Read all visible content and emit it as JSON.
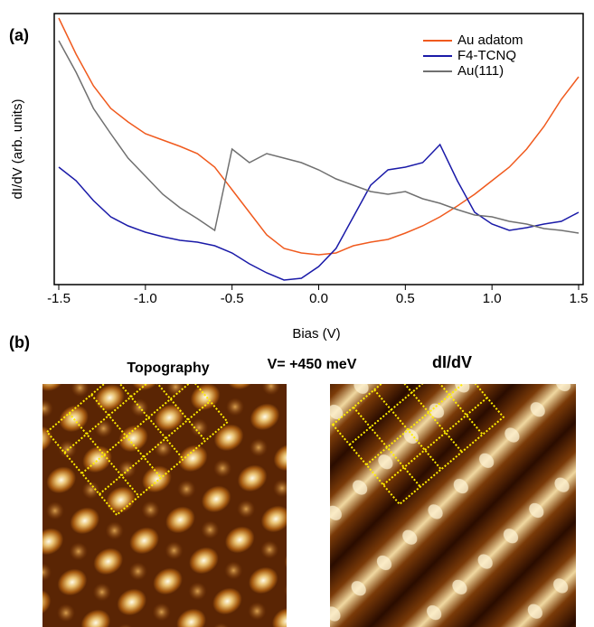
{
  "chart_data": {
    "type": "line",
    "panel_label": "(a)",
    "xlabel": "Bias (V)",
    "ylabel": "dI/dV (arb. units)",
    "x": [
      -1.5,
      -1.4,
      -1.3,
      -1.2,
      -1.1,
      -1.0,
      -0.9,
      -0.8,
      -0.7,
      -0.6,
      -0.5,
      -0.4,
      -0.3,
      -0.2,
      -0.1,
      0.0,
      0.1,
      0.2,
      0.3,
      0.4,
      0.5,
      0.6,
      0.7,
      0.8,
      0.9,
      1.0,
      1.1,
      1.2,
      1.3,
      1.4,
      1.5
    ],
    "xlim": [
      -1.5,
      1.5
    ],
    "ylim": [
      0,
      6
    ],
    "xticks": [
      -1.5,
      {
        "value": -1.0,
        "label": "-1.0"
      },
      -0.5,
      {
        "value": 0.0,
        "label": "0.0"
      },
      0.5,
      {
        "value": 1.0,
        "label": "1.0"
      },
      1.5
    ],
    "legend": "upper right",
    "series": [
      {
        "name": "Au adatom",
        "color": "#f05a1e",
        "values": [
          5.9,
          5.1,
          4.4,
          3.9,
          3.6,
          3.34,
          3.2,
          3.06,
          2.9,
          2.6,
          2.1,
          1.6,
          1.1,
          0.8,
          0.7,
          0.66,
          0.7,
          0.86,
          0.94,
          1.0,
          1.14,
          1.3,
          1.5,
          1.74,
          2.0,
          2.3,
          2.6,
          3.0,
          3.5,
          4.1,
          4.6
        ]
      },
      {
        "name": "F4-TCNQ",
        "color": "#1a1aa8",
        "values": [
          2.6,
          2.3,
          1.86,
          1.5,
          1.3,
          1.16,
          1.06,
          0.98,
          0.94,
          0.86,
          0.7,
          0.46,
          0.26,
          0.1,
          0.14,
          0.4,
          0.8,
          1.5,
          2.2,
          2.54,
          2.6,
          2.7,
          3.1,
          2.3,
          1.6,
          1.34,
          1.2,
          1.26,
          1.34,
          1.4,
          1.6
        ]
      },
      {
        "name": "Au(111)",
        "color": "#707070",
        "values": [
          5.4,
          4.7,
          3.9,
          3.34,
          2.8,
          2.4,
          2.0,
          1.7,
          1.46,
          1.2,
          3.0,
          2.7,
          2.9,
          2.8,
          2.7,
          2.54,
          2.34,
          2.2,
          2.06,
          2.0,
          2.06,
          1.9,
          1.8,
          1.66,
          1.54,
          1.5,
          1.4,
          1.34,
          1.24,
          1.2,
          1.14
        ]
      }
    ]
  },
  "panel_b": {
    "label": "(b)",
    "left_title": "Topography",
    "bias": "V= +450 meV",
    "right_title": "dI/dV"
  }
}
